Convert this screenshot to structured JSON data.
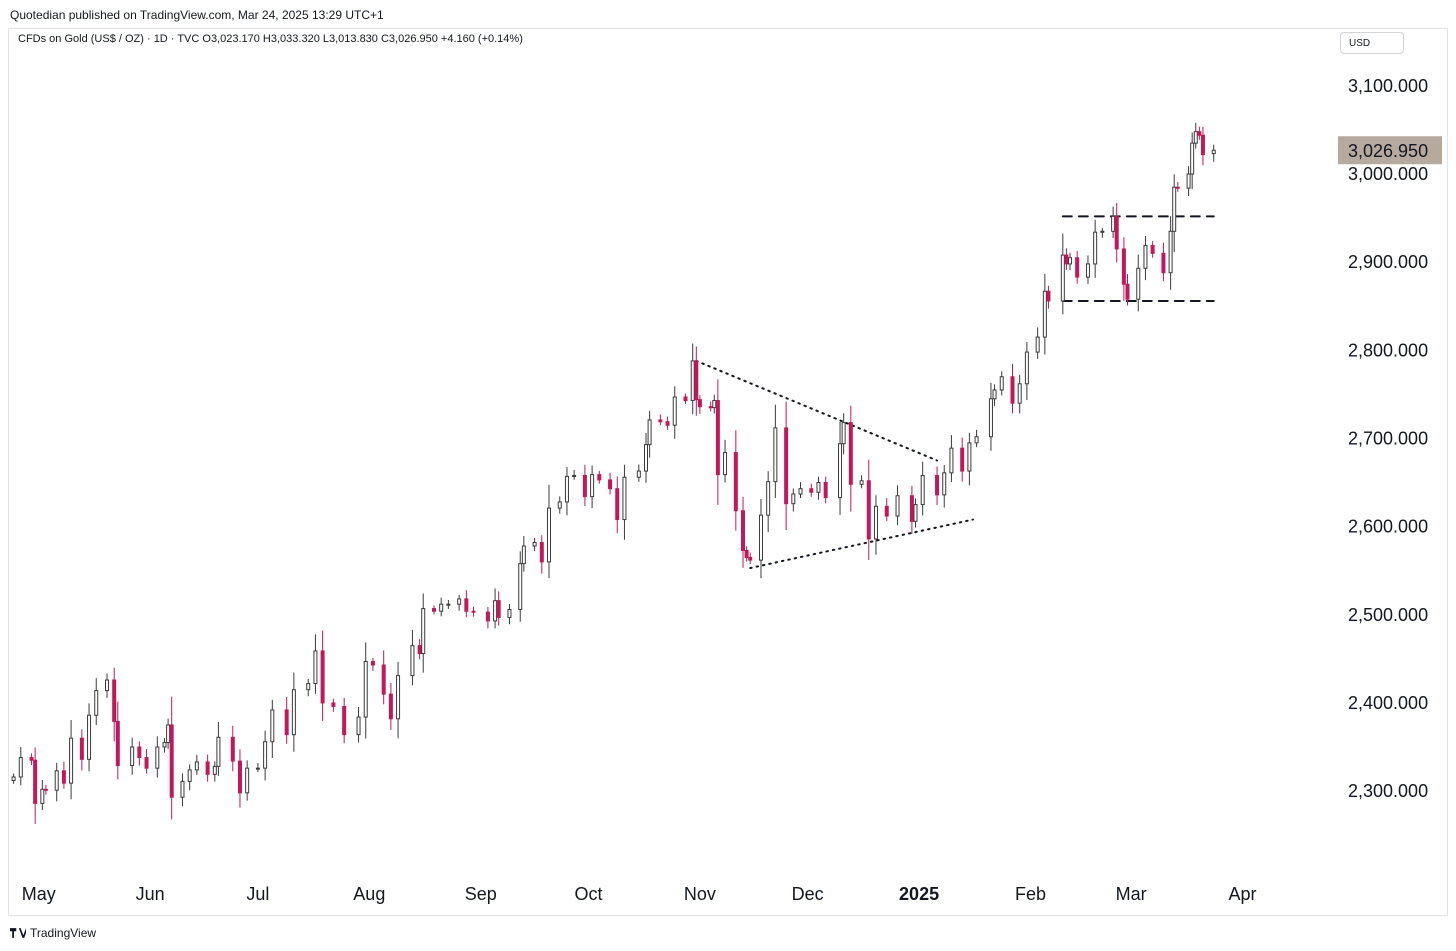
{
  "header": {
    "publisher": "Quotedian published on TradingView.com, Mar 24, 2025 13:29 UTC+1",
    "legend": "CFDs on Gold (US$ / OZ) · 1D · TVC  O3,023.170  H3,033.320  L3,013.830  C3,026.950  +4.160 (+0.14%)",
    "currency": "USD"
  },
  "footer": {
    "brand": "TradingView"
  },
  "chart_data": {
    "type": "candlestick",
    "title": "CFDs on Gold (US$ / OZ)",
    "interval": "1D",
    "source": "TVC",
    "ohlc_last": {
      "open": 3023.17,
      "high": 3033.32,
      "low": 3013.83,
      "close": 3026.95,
      "change": 4.16,
      "change_pct": 0.14
    },
    "current_price_label": "3,026.950",
    "current_price": 3026.95,
    "ylim": [
      2215,
      3135
    ],
    "yticks": [
      2300,
      2400,
      2500,
      2600,
      2700,
      2800,
      2900,
      3000,
      3100
    ],
    "ytick_labels": [
      "2,300.000",
      "2,400.000",
      "2,500.000",
      "2,600.000",
      "2,700.000",
      "2,800.000",
      "2,900.000",
      "3,000.000",
      "3,100.000"
    ],
    "x_start": "2024-04-23",
    "x_end": "2025-04-12",
    "xticks": [
      {
        "label": "May",
        "date": "2024-05-01",
        "bold": false
      },
      {
        "label": "Jun",
        "date": "2024-06-01",
        "bold": false
      },
      {
        "label": "Jul",
        "date": "2024-07-01",
        "bold": false
      },
      {
        "label": "Aug",
        "date": "2024-08-01",
        "bold": false
      },
      {
        "label": "Sep",
        "date": "2024-09-01",
        "bold": false
      },
      {
        "label": "Oct",
        "date": "2024-10-01",
        "bold": false
      },
      {
        "label": "Nov",
        "date": "2024-11-01",
        "bold": false
      },
      {
        "label": "Dec",
        "date": "2024-12-01",
        "bold": false
      },
      {
        "label": "2025",
        "date": "2025-01-01",
        "bold": true
      },
      {
        "label": "Feb",
        "date": "2025-02-01",
        "bold": false
      },
      {
        "label": "Mar",
        "date": "2025-03-01",
        "bold": false
      },
      {
        "label": "Apr",
        "date": "2025-04-01",
        "bold": false
      }
    ],
    "up_color": "#3a3a3a",
    "down_color": "#c2185b",
    "price_label_bg": "#b6aa9e",
    "closes": [
      [
        "2024-04-24",
        2316
      ],
      [
        "2024-04-26",
        2338
      ],
      [
        "2024-04-29",
        2335
      ],
      [
        "2024-04-30",
        2286
      ],
      [
        "2024-05-02",
        2302
      ],
      [
        "2024-05-03",
        2301
      ],
      [
        "2024-05-06",
        2323
      ],
      [
        "2024-05-08",
        2309
      ],
      [
        "2024-05-10",
        2360
      ],
      [
        "2024-05-13",
        2336
      ],
      [
        "2024-05-15",
        2386
      ],
      [
        "2024-05-17",
        2414
      ],
      [
        "2024-05-20",
        2426
      ],
      [
        "2024-05-22",
        2379
      ],
      [
        "2024-05-23",
        2329
      ],
      [
        "2024-05-27",
        2350
      ],
      [
        "2024-05-29",
        2338
      ],
      [
        "2024-05-31",
        2326
      ],
      [
        "2024-06-03",
        2350
      ],
      [
        "2024-06-05",
        2355
      ],
      [
        "2024-06-06",
        2375
      ],
      [
        "2024-06-07",
        2293
      ],
      [
        "2024-06-10",
        2311
      ],
      [
        "2024-06-12",
        2324
      ],
      [
        "2024-06-14",
        2333
      ],
      [
        "2024-06-17",
        2319
      ],
      [
        "2024-06-19",
        2328
      ],
      [
        "2024-06-20",
        2361
      ],
      [
        "2024-06-24",
        2334
      ],
      [
        "2024-06-26",
        2298
      ],
      [
        "2024-06-28",
        2326
      ],
      [
        "2024-07-01",
        2326
      ],
      [
        "2024-07-03",
        2356
      ],
      [
        "2024-07-05",
        2392
      ],
      [
        "2024-07-09",
        2364
      ],
      [
        "2024-07-11",
        2415
      ],
      [
        "2024-07-15",
        2422
      ],
      [
        "2024-07-17",
        2459
      ],
      [
        "2024-07-19",
        2400
      ],
      [
        "2024-07-22",
        2396
      ],
      [
        "2024-07-25",
        2364
      ],
      [
        "2024-07-29",
        2384
      ],
      [
        "2024-07-31",
        2447
      ],
      [
        "2024-08-02",
        2443
      ],
      [
        "2024-08-05",
        2410
      ],
      [
        "2024-08-07",
        2382
      ],
      [
        "2024-08-09",
        2431
      ],
      [
        "2024-08-13",
        2465
      ],
      [
        "2024-08-15",
        2456
      ],
      [
        "2024-08-16",
        2507
      ],
      [
        "2024-08-19",
        2504
      ],
      [
        "2024-08-21",
        2512
      ],
      [
        "2024-08-23",
        2512
      ],
      [
        "2024-08-26",
        2518
      ],
      [
        "2024-08-28",
        2504
      ],
      [
        "2024-08-30",
        2503
      ],
      [
        "2024-09-03",
        2493
      ],
      [
        "2024-09-05",
        2516
      ],
      [
        "2024-09-06",
        2497
      ],
      [
        "2024-09-09",
        2506
      ],
      [
        "2024-09-12",
        2558
      ],
      [
        "2024-09-13",
        2578
      ],
      [
        "2024-09-16",
        2582
      ],
      [
        "2024-09-18",
        2560
      ],
      [
        "2024-09-20",
        2621
      ],
      [
        "2024-09-23",
        2628
      ],
      [
        "2024-09-25",
        2657
      ],
      [
        "2024-09-27",
        2658
      ],
      [
        "2024-09-30",
        2634
      ],
      [
        "2024-10-02",
        2659
      ],
      [
        "2024-10-04",
        2653
      ],
      [
        "2024-10-07",
        2643
      ],
      [
        "2024-10-09",
        2608
      ],
      [
        "2024-10-11",
        2656
      ],
      [
        "2024-10-15",
        2663
      ],
      [
        "2024-10-17",
        2693
      ],
      [
        "2024-10-18",
        2721
      ],
      [
        "2024-10-21",
        2719
      ],
      [
        "2024-10-23",
        2715
      ],
      [
        "2024-10-25",
        2747
      ],
      [
        "2024-10-28",
        2743
      ],
      [
        "2024-10-30",
        2788
      ],
      [
        "2024-10-31",
        2744
      ],
      [
        "2024-11-01",
        2736
      ],
      [
        "2024-11-04",
        2735
      ],
      [
        "2024-11-05",
        2743
      ],
      [
        "2024-11-06",
        2659
      ],
      [
        "2024-11-08",
        2684
      ],
      [
        "2024-11-11",
        2618
      ],
      [
        "2024-11-13",
        2573
      ],
      [
        "2024-11-14",
        2565
      ],
      [
        "2024-11-15",
        2562
      ],
      [
        "2024-11-18",
        2613
      ],
      [
        "2024-11-20",
        2651
      ],
      [
        "2024-11-22",
        2712
      ],
      [
        "2024-11-25",
        2626
      ],
      [
        "2024-11-27",
        2637
      ],
      [
        "2024-11-29",
        2643
      ],
      [
        "2024-12-02",
        2639
      ],
      [
        "2024-12-04",
        2650
      ],
      [
        "2024-12-06",
        2633
      ],
      [
        "2024-12-10",
        2694
      ],
      [
        "2024-12-11",
        2718
      ],
      [
        "2024-12-13",
        2648
      ],
      [
        "2024-12-16",
        2652
      ],
      [
        "2024-12-18",
        2586
      ],
      [
        "2024-12-20",
        2623
      ],
      [
        "2024-12-23",
        2612
      ],
      [
        "2024-12-26",
        2635
      ],
      [
        "2024-12-30",
        2606
      ],
      [
        "2024-12-31",
        2625
      ],
      [
        "2025-01-02",
        2658
      ],
      [
        "2025-01-06",
        2636
      ],
      [
        "2025-01-08",
        2661
      ],
      [
        "2025-01-10",
        2689
      ],
      [
        "2025-01-13",
        2663
      ],
      [
        "2025-01-15",
        2695
      ],
      [
        "2025-01-17",
        2702
      ],
      [
        "2025-01-21",
        2745
      ],
      [
        "2025-01-22",
        2755
      ],
      [
        "2025-01-24",
        2770
      ],
      [
        "2025-01-27",
        2740
      ],
      [
        "2025-01-29",
        2762
      ],
      [
        "2025-01-31",
        2798
      ],
      [
        "2025-02-03",
        2815
      ],
      [
        "2025-02-05",
        2867
      ],
      [
        "2025-02-06",
        2856
      ],
      [
        "2025-02-10",
        2908
      ],
      [
        "2025-02-11",
        2898
      ],
      [
        "2025-02-12",
        2905
      ],
      [
        "2025-02-14",
        2883
      ],
      [
        "2025-02-17",
        2898
      ],
      [
        "2025-02-19",
        2934
      ],
      [
        "2025-02-21",
        2935
      ],
      [
        "2025-02-24",
        2952
      ],
      [
        "2025-02-25",
        2915
      ],
      [
        "2025-02-27",
        2875
      ],
      [
        "2025-02-28",
        2858
      ],
      [
        "2025-03-03",
        2893
      ],
      [
        "2025-03-05",
        2919
      ],
      [
        "2025-03-07",
        2910
      ],
      [
        "2025-03-10",
        2888
      ],
      [
        "2025-03-12",
        2935
      ],
      [
        "2025-03-13",
        2985
      ],
      [
        "2025-03-14",
        2984
      ],
      [
        "2025-03-17",
        3000
      ],
      [
        "2025-03-18",
        3035
      ],
      [
        "2025-03-19",
        3048
      ],
      [
        "2025-03-20",
        3044
      ],
      [
        "2025-03-21",
        3022
      ],
      [
        "2025-03-24",
        3026.95
      ]
    ],
    "annotations": [
      {
        "kind": "dotted-line",
        "points": [
          [
            "2024-10-31",
            2788
          ],
          [
            "2025-01-06",
            2675
          ]
        ]
      },
      {
        "kind": "dotted-line",
        "points": [
          [
            "2024-11-15",
            2553
          ],
          [
            "2025-01-16",
            2608
          ]
        ]
      },
      {
        "kind": "dashed-line",
        "points": [
          [
            "2025-02-10",
            2952
          ],
          [
            "2025-03-24",
            2952
          ]
        ]
      },
      {
        "kind": "dashed-line",
        "points": [
          [
            "2025-02-10",
            2856
          ],
          [
            "2025-03-24",
            2856
          ]
        ]
      }
    ]
  }
}
